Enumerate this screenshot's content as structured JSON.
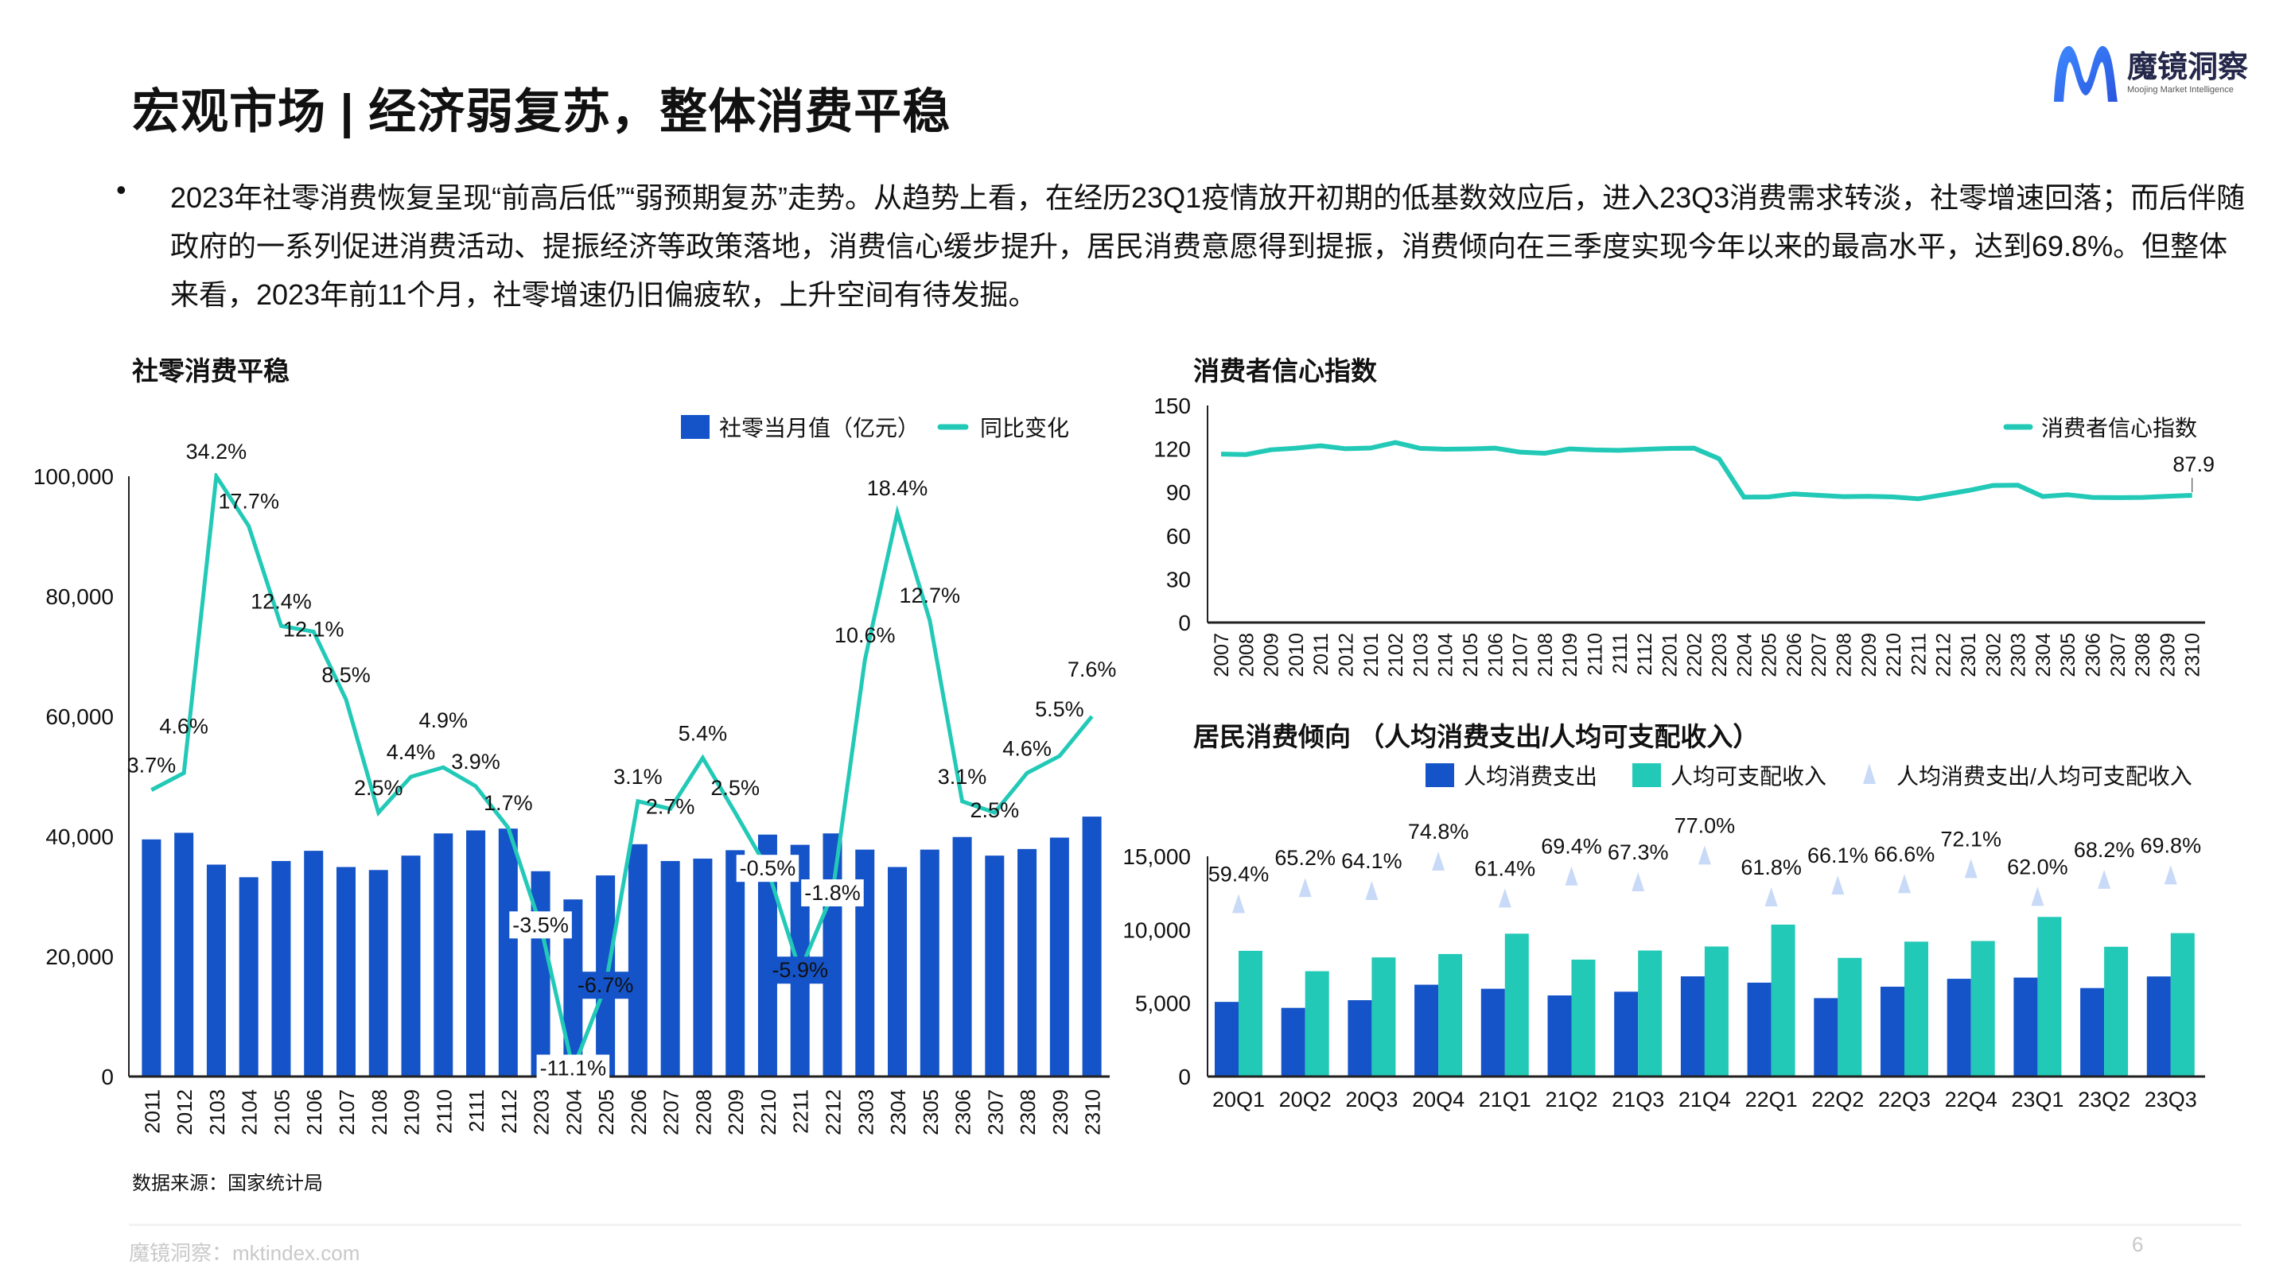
{
  "header": {
    "title": "宏观市场 | 经济弱复苏，整体消费平稳",
    "logo_cn": "魔镜洞察",
    "logo_en": "Moojing Market Intelligence"
  },
  "summary": {
    "bullet": "•",
    "text": "2023年社零消费恢复呈现“前高后低”“弱预期复苏”走势。从趋势上看，在经历23Q1疫情放开初期的低基数效应后，进入23Q3消费需求转淡，社零增速回落；而后伴随政府的一系列促进消费活动、提振经济等政策落地，消费信心缓步提升，居民消费意愿得到提振，消费倾向在三季度实现今年以来的最高水平，达到69.8%。但整体来看，2023年前11个月，社零增速仍旧偏疲软，上升空间有待发掘。"
  },
  "colors": {
    "blue": "#1453C8",
    "teal": "#22C9B7",
    "triangle": "#C8DAF7"
  },
  "chart_data": [
    {
      "type": "bar",
      "title": "社零消费平稳",
      "categories": [
        "2011",
        "2012",
        "2103",
        "2104",
        "2105",
        "2106",
        "2107",
        "2108",
        "2109",
        "2110",
        "2111",
        "2112",
        "2203",
        "2204",
        "2205",
        "2206",
        "2207",
        "2208",
        "2209",
        "2210",
        "2211",
        "2212",
        "2303",
        "2304",
        "2305",
        "2306",
        "2307",
        "2308",
        "2309",
        "2310"
      ],
      "series": [
        {
          "name": "社零当月值（亿元）",
          "type": "bar",
          "values": [
            39500,
            40600,
            35300,
            33200,
            35900,
            37600,
            34900,
            34400,
            36800,
            40500,
            41000,
            41300,
            34200,
            29500,
            33500,
            38700,
            35900,
            36300,
            37700,
            40300,
            38600,
            40500,
            37800,
            34900,
            37800,
            39900,
            36800,
            37900,
            39800,
            43300
          ]
        },
        {
          "name": "同比变化",
          "type": "line",
          "unit": "%",
          "values": [
            3.7,
            4.6,
            34.2,
            17.7,
            12.4,
            12.1,
            8.5,
            2.5,
            4.4,
            4.9,
            3.9,
            1.7,
            -3.5,
            -11.1,
            -6.7,
            3.1,
            2.7,
            5.4,
            2.5,
            -0.5,
            -5.9,
            -1.8,
            10.6,
            18.4,
            12.7,
            3.1,
            2.5,
            4.6,
            5.5,
            7.6
          ],
          "labels": [
            "3.7%",
            "4.6%",
            "34.2%",
            "17.7%",
            "12.4%",
            "12.1%",
            "8.5%",
            "2.5%",
            "4.4%",
            "4.9%",
            "3.9%",
            "1.7%",
            "-3.5%",
            "-11.1%",
            "-6.7%",
            "3.1%",
            "2.7%",
            "5.4%",
            "2.5%",
            "-0.5%",
            "-5.9%",
            "-1.8%",
            "10.6%",
            "18.4%",
            "12.7%",
            "3.1%",
            "2.5%",
            "4.6%",
            "5.5%",
            "7.6%"
          ]
        }
      ],
      "yticks": [
        "0",
        "20,000",
        "40,000",
        "60,000",
        "80,000",
        "100,000"
      ],
      "ylim": [
        0,
        100000
      ],
      "y2lim": [
        -11.5,
        19.5
      ],
      "legend": "top-right",
      "source": "数据来源：国家统计局"
    },
    {
      "type": "line",
      "title": "消费者信心指数",
      "categories": [
        "2007",
        "2008",
        "2009",
        "2010",
        "2011",
        "2012",
        "2101",
        "2102",
        "2103",
        "2104",
        "2105",
        "2106",
        "2107",
        "2108",
        "2109",
        "2110",
        "2111",
        "2112",
        "2201",
        "2202",
        "2203",
        "2204",
        "2205",
        "2206",
        "2207",
        "2208",
        "2209",
        "2210",
        "2211",
        "2212",
        "2301",
        "2302",
        "2303",
        "2304",
        "2305",
        "2306",
        "2307",
        "2308",
        "2309",
        "2310"
      ],
      "series": [
        {
          "name": "消费者信心指数",
          "values": [
            116.4,
            116.1,
            119.4,
            120.5,
            122.2,
            120.1,
            120.6,
            124.4,
            120.4,
            119.8,
            120.0,
            120.5,
            117.8,
            117.0,
            120.0,
            119.3,
            119.0,
            119.7,
            120.3,
            120.5,
            113.2,
            86.7,
            86.8,
            88.9,
            87.9,
            87.0,
            87.2,
            86.8,
            85.5,
            88.3,
            91.2,
            94.7,
            94.9,
            87.1,
            88.3,
            86.5,
            86.3,
            86.5,
            87.2,
            87.9
          ]
        }
      ],
      "last_label": "87.9",
      "yticks": [
        "0",
        "30",
        "60",
        "90",
        "120",
        "150"
      ],
      "ylim": [
        0,
        150
      ],
      "legend": "top-right"
    },
    {
      "type": "bar",
      "title": "居民消费倾向 （人均消费支出/人均可支配收入）",
      "categories": [
        "20Q1",
        "20Q2",
        "20Q3",
        "20Q4",
        "21Q1",
        "21Q2",
        "21Q3",
        "21Q4",
        "22Q1",
        "22Q2",
        "22Q3",
        "22Q4",
        "23Q1",
        "23Q2",
        "23Q3"
      ],
      "series": [
        {
          "name": "人均消费支出",
          "type": "bar",
          "values": [
            5082,
            4676,
            5199,
            6253,
            5978,
            5523,
            5776,
            6823,
            6393,
            5339,
            6117,
            6656,
            6738,
            6026,
            6816
          ]
        },
        {
          "name": "人均可支配收入",
          "type": "bar",
          "values": [
            8561,
            7173,
            8112,
            8343,
            9730,
            7961,
            8582,
            8855,
            10345,
            8081,
            9187,
            9230,
            10870,
            8838,
            9766
          ]
        },
        {
          "name": "人均消费支出/人均可支配收入",
          "type": "scatter",
          "unit": "%",
          "values": [
            59.4,
            65.2,
            64.1,
            74.8,
            61.4,
            69.4,
            67.3,
            77.0,
            61.8,
            66.1,
            66.6,
            72.1,
            62.0,
            68.2,
            69.8
          ],
          "labels": [
            "59.4%",
            "65.2%",
            "64.1%",
            "74.8%",
            "61.4%",
            "69.4%",
            "67.3%",
            "77.0%",
            "61.8%",
            "66.1%",
            "66.6%",
            "72.1%",
            "62.0%",
            "68.2%",
            "69.8%"
          ]
        }
      ],
      "yticks": [
        "0",
        "5,000",
        "10,000",
        "15,000"
      ],
      "ylim": [
        0,
        15000
      ],
      "y2lim": [
        0,
        80
      ],
      "legend": "top"
    }
  ],
  "footer": {
    "site": "魔镜洞察：mktindex.com",
    "page": "6"
  }
}
